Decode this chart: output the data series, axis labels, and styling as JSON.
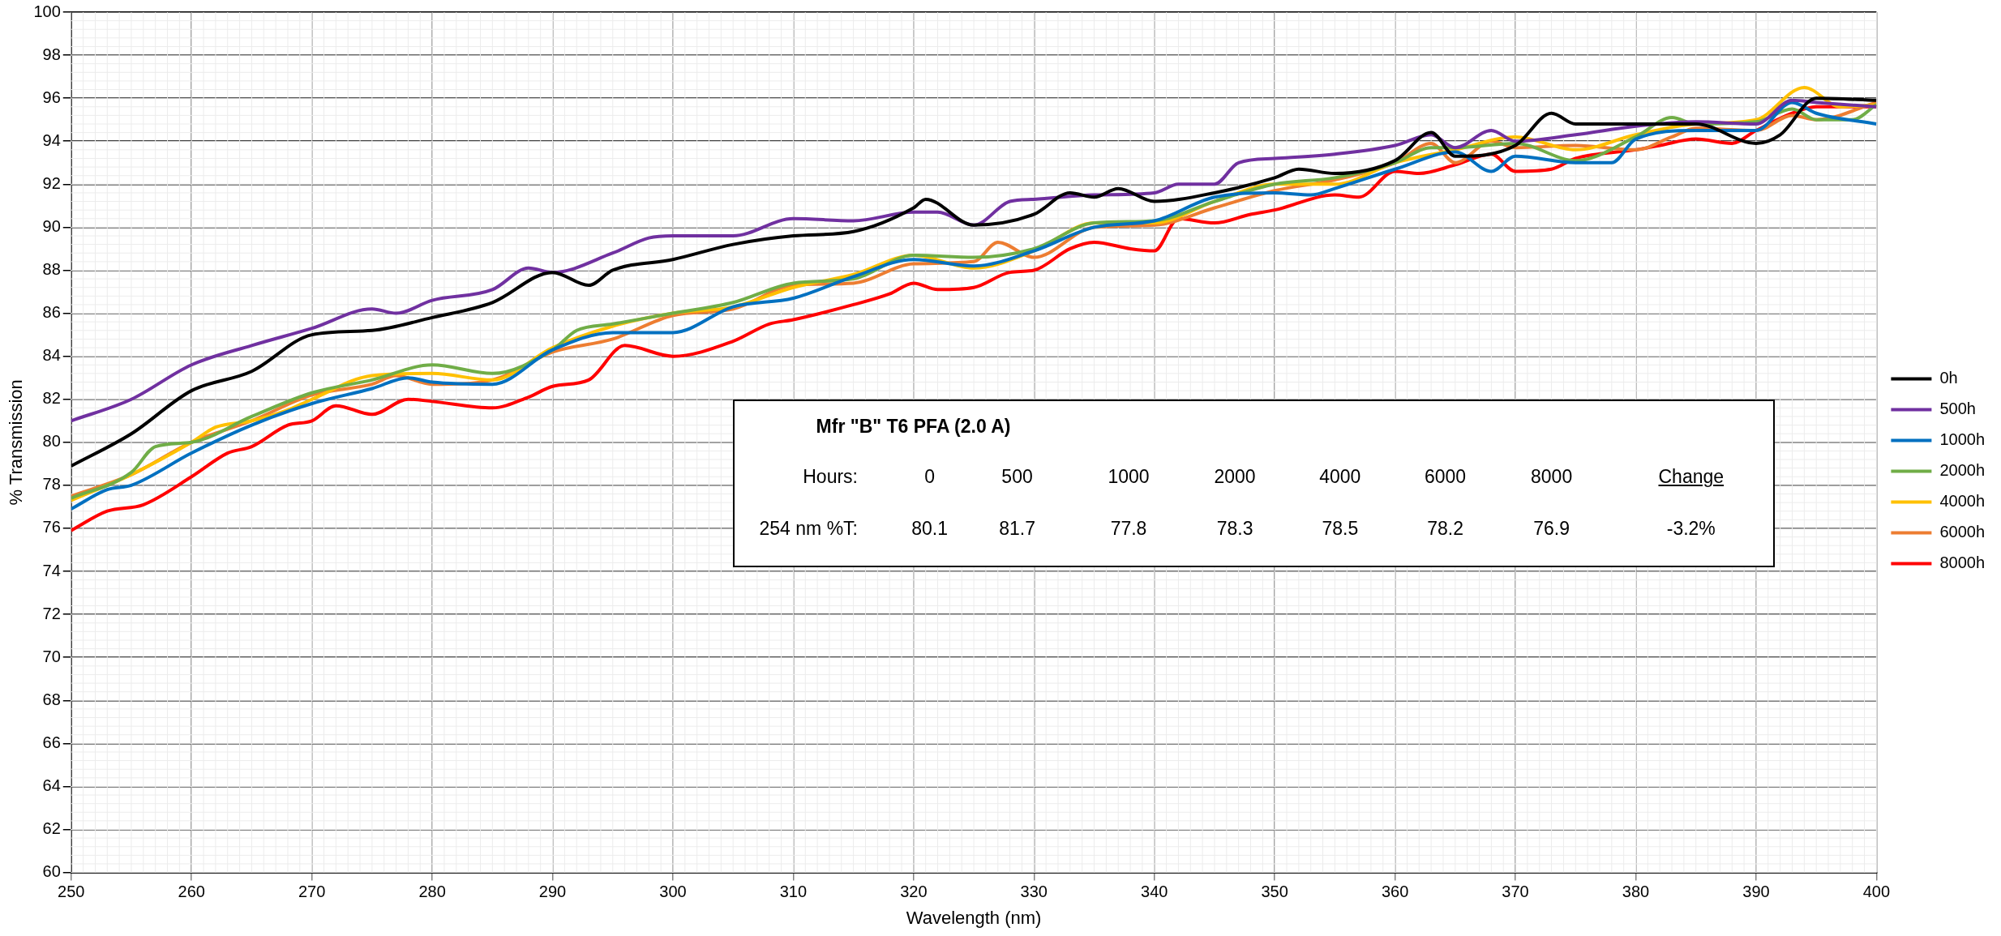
{
  "chart_data": {
    "type": "line",
    "xlabel": "Wavelength (nm)",
    "ylabel": "% Transmission",
    "xlim": [
      250,
      400
    ],
    "xticks": [
      250,
      260,
      270,
      280,
      290,
      300,
      310,
      320,
      330,
      340,
      350,
      360,
      370,
      380,
      390,
      400
    ],
    "ylim": [
      60,
      100
    ],
    "yticks": [
      60,
      62,
      64,
      66,
      68,
      70,
      72,
      74,
      76,
      78,
      80,
      82,
      84,
      86,
      88,
      90,
      92,
      94,
      96,
      98,
      100
    ],
    "grid": true,
    "legend": "right",
    "marker": "none",
    "line_style": "solid",
    "series": [
      {
        "name": "0h",
        "color": "#000000",
        "x": [
          250,
          255,
          260,
          265,
          270,
          275,
          280,
          285,
          290,
          293,
          295,
          300,
          305,
          310,
          315,
          320,
          321,
          325,
          330,
          333,
          335,
          337,
          340,
          345,
          350,
          352,
          355,
          360,
          363,
          365,
          370,
          373,
          375,
          380,
          385,
          390,
          392,
          395,
          400
        ],
        "values": [
          78.9,
          80.4,
          82.4,
          83.3,
          85.0,
          85.2,
          85.8,
          86.5,
          87.9,
          87.3,
          88.0,
          88.5,
          89.2,
          89.6,
          89.8,
          90.9,
          91.3,
          90.1,
          90.6,
          91.6,
          91.4,
          91.8,
          91.2,
          91.6,
          92.3,
          92.7,
          92.5,
          93.1,
          94.4,
          93.3,
          93.8,
          95.3,
          94.8,
          94.8,
          94.8,
          93.9,
          94.3,
          96.0,
          95.9
        ]
      },
      {
        "name": "500h",
        "color": "#7030a0",
        "x": [
          250,
          255,
          260,
          265,
          270,
          275,
          277,
          280,
          285,
          288,
          290,
          295,
          298,
          300,
          305,
          310,
          315,
          320,
          322,
          325,
          328,
          330,
          335,
          340,
          342,
          345,
          347,
          350,
          355,
          360,
          363,
          365,
          368,
          370,
          375,
          380,
          385,
          390,
          393,
          395,
          400
        ],
        "values": [
          81.0,
          82.0,
          83.6,
          84.5,
          85.3,
          86.2,
          86.0,
          86.6,
          87.1,
          88.1,
          87.9,
          88.8,
          89.5,
          89.6,
          89.6,
          90.4,
          90.3,
          90.7,
          90.7,
          90.1,
          91.2,
          91.3,
          91.5,
          91.6,
          92.0,
          92.0,
          93.0,
          93.2,
          93.4,
          93.8,
          94.3,
          93.7,
          94.5,
          94.0,
          94.3,
          94.7,
          94.9,
          94.8,
          95.9,
          95.8,
          95.6
        ]
      },
      {
        "name": "1000h",
        "color": "#0070c0",
        "x": [
          250,
          253,
          255,
          260,
          265,
          270,
          275,
          278,
          280,
          285,
          290,
          295,
          300,
          305,
          310,
          315,
          320,
          325,
          330,
          335,
          340,
          345,
          350,
          353,
          355,
          360,
          365,
          368,
          370,
          375,
          378,
          380,
          385,
          390,
          393,
          395,
          400
        ],
        "values": [
          76.9,
          77.8,
          78.0,
          79.5,
          80.8,
          81.8,
          82.5,
          83.0,
          82.8,
          82.7,
          84.3,
          85.1,
          85.1,
          86.3,
          86.7,
          87.7,
          88.5,
          88.2,
          88.9,
          90.0,
          90.3,
          91.4,
          91.6,
          91.5,
          91.8,
          92.7,
          93.5,
          92.6,
          93.3,
          93.0,
          93.0,
          94.1,
          94.5,
          94.5,
          95.8,
          95.3,
          94.8
        ]
      },
      {
        "name": "2000h",
        "color": "#70ad47",
        "x": [
          250,
          255,
          257,
          260,
          265,
          270,
          275,
          280,
          285,
          290,
          292,
          295,
          300,
          305,
          310,
          315,
          320,
          325,
          330,
          335,
          340,
          345,
          350,
          355,
          360,
          363,
          365,
          370,
          375,
          380,
          383,
          385,
          390,
          393,
          395,
          398,
          400
        ],
        "values": [
          77.4,
          78.6,
          79.8,
          80.0,
          81.2,
          82.3,
          82.9,
          83.6,
          83.2,
          84.3,
          85.2,
          85.5,
          86.0,
          86.5,
          87.4,
          87.6,
          88.7,
          88.6,
          89.0,
          90.2,
          90.3,
          91.2,
          92.0,
          92.3,
          93.0,
          93.7,
          93.7,
          93.9,
          93.1,
          94.2,
          95.1,
          94.8,
          94.9,
          95.5,
          95.0,
          95.0,
          95.7
        ]
      },
      {
        "name": "4000h",
        "color": "#ffc000",
        "x": [
          250,
          255,
          260,
          262,
          265,
          268,
          270,
          275,
          280,
          285,
          290,
          295,
          300,
          305,
          310,
          315,
          320,
          325,
          330,
          335,
          340,
          345,
          350,
          355,
          360,
          365,
          370,
          375,
          380,
          385,
          390,
          394,
          397,
          400
        ],
        "values": [
          77.3,
          78.5,
          80.0,
          80.7,
          81.0,
          81.5,
          82.0,
          83.1,
          83.2,
          82.9,
          84.4,
          85.4,
          86.0,
          86.3,
          87.2,
          87.8,
          88.7,
          88.1,
          88.9,
          90.2,
          90.2,
          91.2,
          92.0,
          92.0,
          93.0,
          93.6,
          94.2,
          93.6,
          94.3,
          94.8,
          95.0,
          96.5,
          95.6,
          95.7
        ]
      },
      {
        "name": "6000h",
        "color": "#ed7d31",
        "x": [
          250,
          255,
          260,
          265,
          270,
          275,
          277,
          280,
          285,
          290,
          295,
          300,
          305,
          310,
          315,
          320,
          325,
          327,
          330,
          335,
          340,
          345,
          350,
          355,
          360,
          363,
          365,
          368,
          370,
          375,
          380,
          383,
          385,
          390,
          393,
          395,
          400
        ],
        "values": [
          77.5,
          78.5,
          80.0,
          81.0,
          82.2,
          82.7,
          83.1,
          82.7,
          82.9,
          84.2,
          84.8,
          85.9,
          86.2,
          87.3,
          87.4,
          88.3,
          88.4,
          89.3,
          88.6,
          90.0,
          90.1,
          90.9,
          91.7,
          92.2,
          93.0,
          93.9,
          93.0,
          94.0,
          93.7,
          93.8,
          93.6,
          94.2,
          94.6,
          94.5,
          95.2,
          95.0,
          95.8
        ]
      },
      {
        "name": "8000h",
        "color": "#ff0000",
        "x": [
          250,
          253,
          256,
          260,
          263,
          265,
          268,
          270,
          272,
          275,
          278,
          280,
          285,
          288,
          290,
          293,
          296,
          300,
          305,
          308,
          310,
          315,
          318,
          320,
          322,
          325,
          328,
          330,
          333,
          335,
          338,
          340,
          342,
          345,
          348,
          350,
          355,
          357,
          360,
          362,
          365,
          368,
          370,
          373,
          375,
          380,
          382,
          385,
          388,
          390,
          393,
          395,
          400
        ],
        "values": [
          75.9,
          76.8,
          77.1,
          78.4,
          79.5,
          79.8,
          80.8,
          81.0,
          81.7,
          81.3,
          82.0,
          81.9,
          81.6,
          82.1,
          82.6,
          82.9,
          84.5,
          84.0,
          84.7,
          85.5,
          85.7,
          86.4,
          86.9,
          87.4,
          87.1,
          87.2,
          87.9,
          88.0,
          89.0,
          89.3,
          89.0,
          88.9,
          90.4,
          90.2,
          90.6,
          90.8,
          91.5,
          91.4,
          92.6,
          92.5,
          92.9,
          93.4,
          92.6,
          92.7,
          93.2,
          93.6,
          93.8,
          94.1,
          93.9,
          94.5,
          95.3,
          95.6,
          95.6
        ]
      }
    ],
    "annotations": [
      "Mfr \"B\" T6 PFA (2.0 A)",
      "Hours:",
      "0",
      "500",
      "1000",
      "2000",
      "4000",
      "6000",
      "8000",
      "Change",
      "254 nm %T:",
      "80.1",
      "81.7",
      "77.8",
      "78.3",
      "78.5",
      "78.2",
      "76.9",
      "-3.2%"
    ]
  }
}
